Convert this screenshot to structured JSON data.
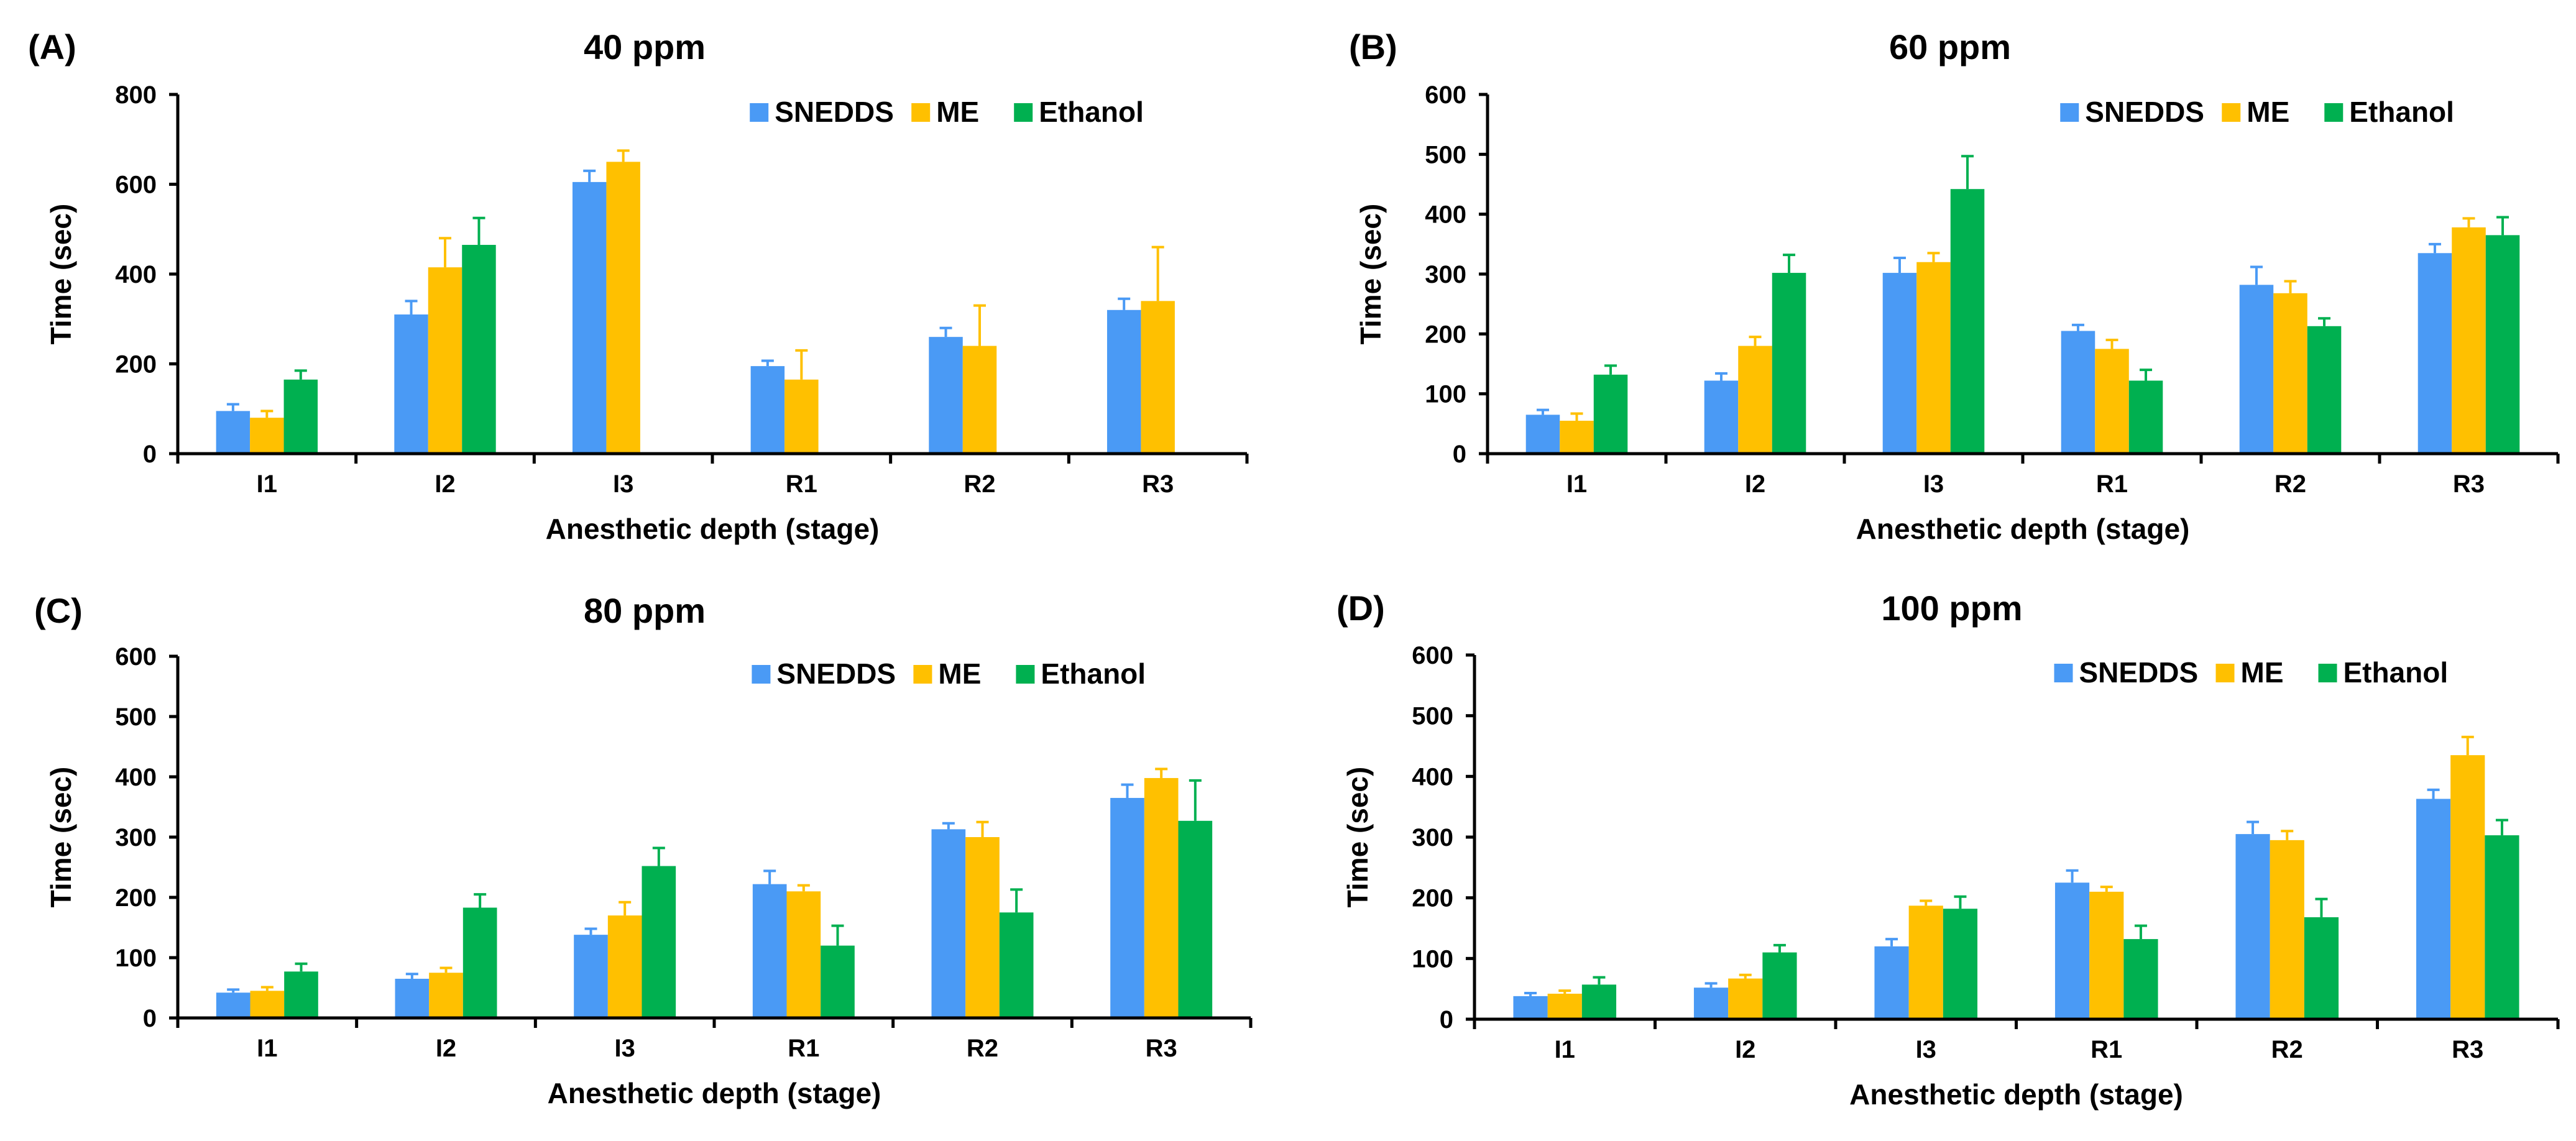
{
  "figure": {
    "panels_description": "Four grouped bar charts of anesthesia induction/recovery time by stage"
  },
  "colors": {
    "SNEDDS": "#4A9AF5",
    "ME": "#FFC000",
    "Ethanol": "#00B050",
    "axis": "#000000",
    "error": "#000000"
  },
  "chart_data": [
    {
      "type": "bar",
      "panel_label": "(A)",
      "title": "40 ppm",
      "xlabel": "Anesthetic depth (stage)",
      "ylabel": "Time (sec)",
      "categories": [
        "I1",
        "I2",
        "I3",
        "R1",
        "R2",
        "R3"
      ],
      "ylim": [
        0,
        800
      ],
      "yticks": [
        0,
        200,
        400,
        600,
        800
      ],
      "legend": [
        "SNEDDS",
        "ME",
        "Ethanol"
      ],
      "legend_position": "top-right",
      "series": [
        {
          "name": "SNEDDS",
          "values": [
            95,
            310,
            605,
            195,
            260,
            320
          ],
          "errors": [
            15,
            30,
            25,
            12,
            20,
            25
          ]
        },
        {
          "name": "ME",
          "values": [
            80,
            415,
            650,
            165,
            240,
            340
          ],
          "errors": [
            15,
            65,
            25,
            65,
            90,
            120
          ]
        },
        {
          "name": "Ethanol",
          "values": [
            165,
            465,
            null,
            null,
            null,
            null
          ],
          "errors": [
            20,
            60,
            null,
            null,
            null,
            null
          ]
        }
      ]
    },
    {
      "type": "bar",
      "panel_label": "(B)",
      "title": "60 ppm",
      "xlabel": "Anesthetic depth (stage)",
      "ylabel": "Time (sec)",
      "categories": [
        "I1",
        "I2",
        "I3",
        "R1",
        "R2",
        "R3"
      ],
      "ylim": [
        0,
        600
      ],
      "yticks": [
        0,
        100,
        200,
        300,
        400,
        500,
        600
      ],
      "legend": [
        "SNEDDS",
        "ME",
        "Ethanol"
      ],
      "legend_position": "top-right",
      "series": [
        {
          "name": "SNEDDS",
          "values": [
            65,
            122,
            302,
            205,
            282,
            335
          ],
          "errors": [
            8,
            12,
            25,
            10,
            30,
            15
          ]
        },
        {
          "name": "ME",
          "values": [
            55,
            180,
            320,
            175,
            268,
            378
          ],
          "errors": [
            12,
            15,
            15,
            15,
            20,
            15
          ]
        },
        {
          "name": "Ethanol",
          "values": [
            132,
            302,
            442,
            122,
            213,
            365
          ],
          "errors": [
            15,
            30,
            55,
            18,
            13,
            30
          ]
        }
      ]
    },
    {
      "type": "bar",
      "panel_label": "(C)",
      "title": "80 ppm",
      "xlabel": "Anesthetic depth (stage)",
      "ylabel": "Time (sec)",
      "categories": [
        "I1",
        "I2",
        "I3",
        "R1",
        "R2",
        "R3"
      ],
      "ylim": [
        0,
        600
      ],
      "yticks": [
        0,
        100,
        200,
        300,
        400,
        500,
        600
      ],
      "legend": [
        "SNEDDS",
        "ME",
        "Ethanol"
      ],
      "legend_position": "top-right",
      "series": [
        {
          "name": "SNEDDS",
          "values": [
            42,
            65,
            138,
            222,
            313,
            365
          ],
          "errors": [
            5,
            8,
            10,
            22,
            10,
            22
          ]
        },
        {
          "name": "ME",
          "values": [
            45,
            75,
            170,
            210,
            300,
            398
          ],
          "errors": [
            6,
            8,
            22,
            10,
            25,
            15
          ]
        },
        {
          "name": "Ethanol",
          "values": [
            77,
            183,
            252,
            120,
            175,
            327
          ],
          "errors": [
            13,
            22,
            30,
            33,
            38,
            67
          ]
        }
      ]
    },
    {
      "type": "bar",
      "panel_label": "(D)",
      "title": "100 ppm",
      "xlabel": "Anesthetic depth (stage)",
      "ylabel": "Time (sec)",
      "categories": [
        "I1",
        "I2",
        "I3",
        "R1",
        "R2",
        "R3"
      ],
      "ylim": [
        0,
        600
      ],
      "yticks": [
        0,
        100,
        200,
        300,
        400,
        500,
        600
      ],
      "legend": [
        "SNEDDS",
        "ME",
        "Ethanol"
      ],
      "legend_position": "top-right",
      "series": [
        {
          "name": "SNEDDS",
          "values": [
            38,
            52,
            120,
            225,
            305,
            363
          ],
          "errors": [
            5,
            7,
            12,
            20,
            20,
            15
          ]
        },
        {
          "name": "ME",
          "values": [
            42,
            67,
            187,
            210,
            295,
            435
          ],
          "errors": [
            5,
            6,
            8,
            8,
            15,
            30
          ]
        },
        {
          "name": "Ethanol",
          "values": [
            57,
            110,
            182,
            132,
            168,
            303
          ],
          "errors": [
            12,
            12,
            20,
            22,
            30,
            25
          ]
        }
      ]
    }
  ]
}
